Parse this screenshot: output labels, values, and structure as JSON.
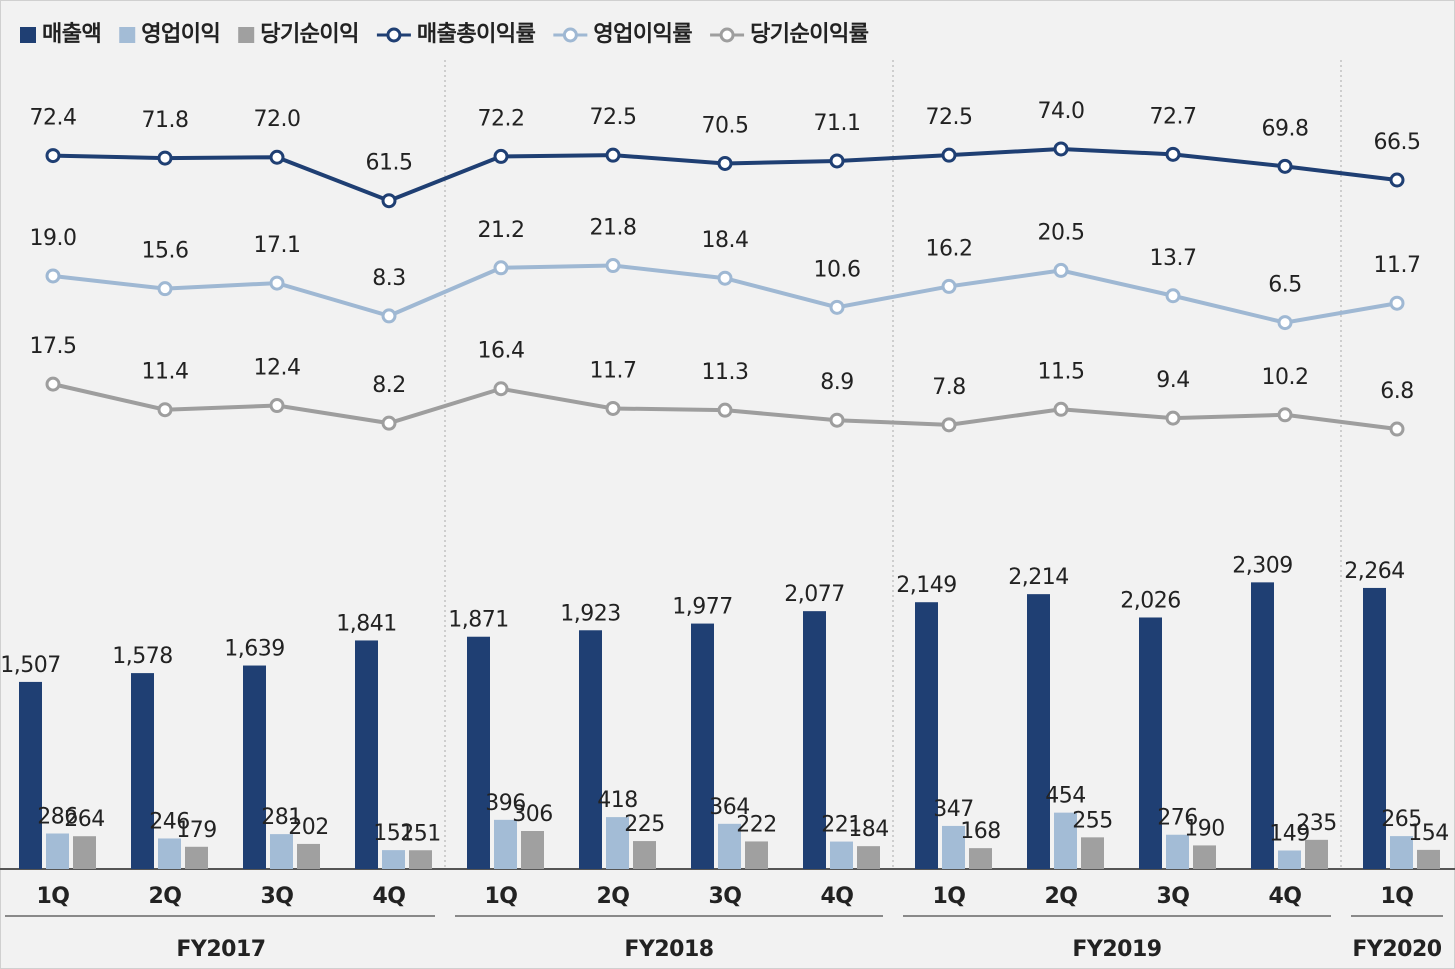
{
  "chart_data": {
    "type": "bar",
    "categories": [
      "1Q",
      "2Q",
      "3Q",
      "4Q",
      "1Q",
      "2Q",
      "3Q",
      "4Q",
      "1Q",
      "2Q",
      "3Q",
      "4Q",
      "1Q"
    ],
    "groups": [
      {
        "name": "FY2017",
        "count": 4
      },
      {
        "name": "FY2018",
        "count": 4
      },
      {
        "name": "FY2019",
        "count": 4
      },
      {
        "name": "FY2020",
        "count": 1
      }
    ],
    "ylim": [
      0,
      7000
    ],
    "series": [
      {
        "name": "매출액",
        "type": "bar",
        "color": "#1f3f73",
        "values": [
          1507,
          1578,
          1639,
          1841,
          1871,
          1923,
          1977,
          2077,
          2149,
          2214,
          2026,
          2309,
          2264
        ],
        "value_labels": [
          "1,507",
          "1,578",
          "1,639",
          "1,841",
          "1,871",
          "1,923",
          "1,977",
          "2,077",
          "2,149",
          "2,214",
          "2,026",
          "2,309",
          "2,264"
        ]
      },
      {
        "name": "영업이익",
        "type": "bar",
        "color": "#a3bcd6",
        "values": [
          286,
          246,
          281,
          152,
          396,
          418,
          364,
          221,
          347,
          454,
          276,
          149,
          265
        ]
      },
      {
        "name": "당기순이익",
        "type": "bar",
        "color": "#a0a0a0",
        "values": [
          264,
          179,
          202,
          151,
          306,
          225,
          222,
          184,
          168,
          255,
          190,
          235,
          154
        ]
      },
      {
        "name": "매출총이익률",
        "type": "line",
        "color": "#1f3f73",
        "ylim": [
          -100,
          110
        ],
        "values": [
          72.4,
          71.8,
          72.0,
          61.5,
          72.2,
          72.5,
          70.5,
          71.1,
          72.5,
          74.0,
          72.7,
          69.8,
          66.5
        ],
        "value_labels": [
          "72.4",
          "71.8",
          "72.0",
          "61.5",
          "72.2",
          "72.5",
          "70.5",
          "71.1",
          "72.5",
          "74.0",
          "72.7",
          "69.8",
          "66.5"
        ]
      },
      {
        "name": "영업이익률",
        "type": "line",
        "color": "#9fb8d3",
        "ylim": [
          -140,
          93
        ],
        "values": [
          19.0,
          15.6,
          17.1,
          8.3,
          21.2,
          21.8,
          18.4,
          10.6,
          16.2,
          20.5,
          13.7,
          6.5,
          11.7
        ],
        "value_labels": [
          "19.0",
          "15.6",
          "17.1",
          "8.3",
          "21.2",
          "21.8",
          "18.4",
          "10.6",
          "16.2",
          "20.5",
          "13.7",
          "6.5",
          "11.7"
        ]
      },
      {
        "name": "당기순이익률",
        "type": "line",
        "color": "#9e9e9e",
        "ylim": [
          -98,
          109
        ],
        "values": [
          17.5,
          11.4,
          12.4,
          8.2,
          16.4,
          11.7,
          11.3,
          8.9,
          7.8,
          11.5,
          9.4,
          10.2,
          6.8
        ],
        "value_labels": [
          "17.5",
          "11.4",
          "12.4",
          "8.2",
          "16.4",
          "11.7",
          "11.3",
          "8.9",
          "7.8",
          "11.5",
          "9.4",
          "10.2",
          "6.8"
        ]
      }
    ]
  }
}
